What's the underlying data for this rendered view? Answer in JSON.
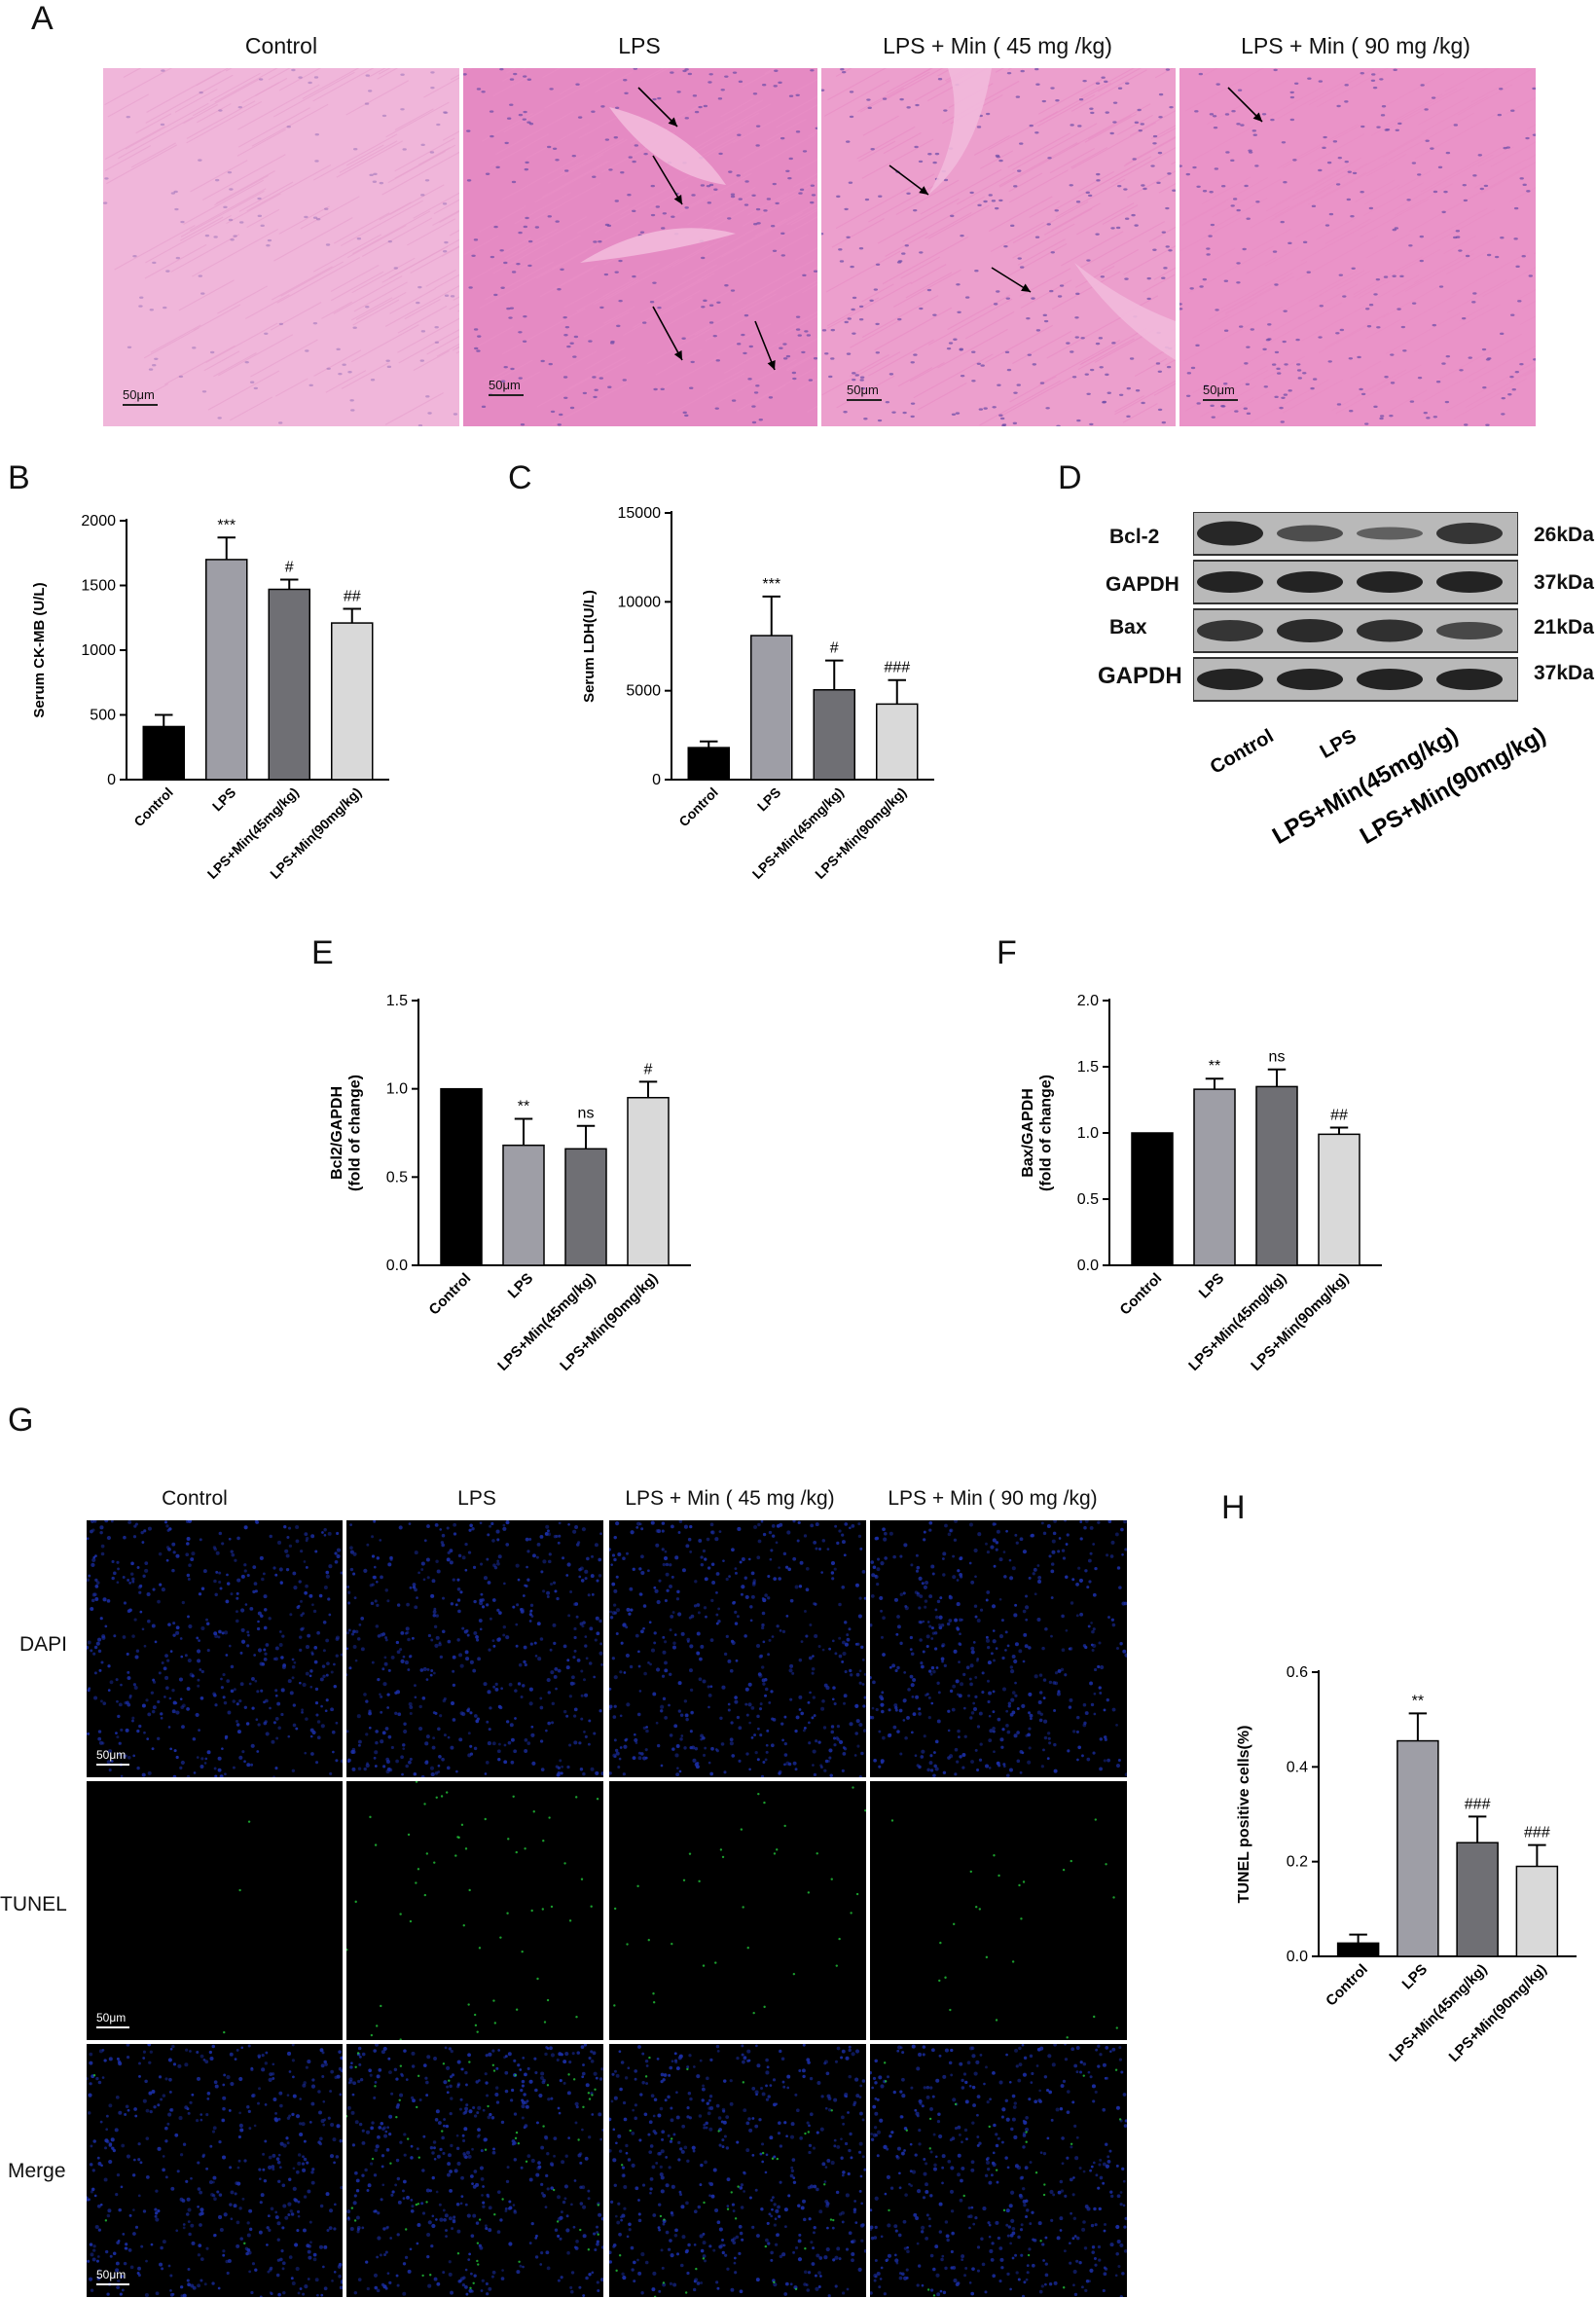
{
  "panel_letters": {
    "A": "A",
    "B": "B",
    "C": "C",
    "D": "D",
    "E": "E",
    "F": "F",
    "G": "G",
    "H": "H"
  },
  "he_panel": {
    "titles": [
      "Control",
      "LPS",
      "LPS + Min ( 45 mg /kg)",
      "LPS + Min ( 90 mg /kg)"
    ],
    "scale_label": "50μm",
    "colors": {
      "tissue": "#e98fc6",
      "tissue_light": "#f2b9dc",
      "nuclei": "#6a4aa6"
    }
  },
  "western_blot": {
    "bands": [
      {
        "label": "Bcl-2",
        "kda": "26kDa"
      },
      {
        "label": "GAPDH",
        "kda": "37kDa"
      },
      {
        "label": "Bax",
        "kda": "21kDa"
      },
      {
        "label": "GAPDH",
        "kda": "37kDa"
      }
    ],
    "lanes": [
      "Control",
      "LPS",
      "LPS+Min(45mg/kg)",
      "LPS+Min(90mg/kg)"
    ]
  },
  "fluorescence_panel": {
    "titles": [
      "Control",
      "LPS",
      "LPS + Min ( 45 mg /kg)",
      "LPS + Min ( 90 mg /kg)"
    ],
    "rows": [
      "DAPI",
      "TUNEL",
      "Merge"
    ],
    "scale_label": "50μm",
    "colors": {
      "dapi": "#1b2fa8",
      "tunel": "#22c63a"
    }
  },
  "chart_data": [
    {
      "id": "B",
      "type": "bar",
      "categories": [
        "Control",
        "LPS",
        "LPS+Min(45mg/kg)",
        "LPS+Min(90mg/kg)"
      ],
      "values": [
        410,
        1700,
        1470,
        1210
      ],
      "errors": [
        90,
        170,
        75,
        110
      ],
      "annotations": [
        "",
        "***",
        "#",
        "##"
      ],
      "ylabel": "Serum CK-MB (U/L)",
      "ylim": [
        0,
        2000
      ],
      "yticks": [
        0,
        500,
        1000,
        1500,
        2000
      ],
      "colors": [
        "#000000",
        "#9e9ea6",
        "#6f6f74",
        "#d9d9d9"
      ]
    },
    {
      "id": "C",
      "type": "bar",
      "categories": [
        "Control",
        "LPS",
        "LPS+Min(45mg/kg)",
        "LPS+Min(90mg/kg)"
      ],
      "values": [
        1800,
        8100,
        5050,
        4250
      ],
      "errors": [
        350,
        2200,
        1650,
        1350
      ],
      "annotations": [
        "",
        "***",
        "#",
        "###"
      ],
      "ylabel": "Serum LDH(U/L)",
      "ylim": [
        0,
        15000
      ],
      "yticks": [
        0,
        5000,
        10000,
        15000
      ],
      "colors": [
        "#000000",
        "#9e9ea6",
        "#6f6f74",
        "#d9d9d9"
      ]
    },
    {
      "id": "E",
      "type": "bar",
      "categories": [
        "Control",
        "LPS",
        "LPS+Min(45mg/kg)",
        "LPS+Min(90mg/kg)"
      ],
      "values": [
        1.0,
        0.68,
        0.66,
        0.95
      ],
      "errors": [
        0,
        0.15,
        0.13,
        0.09
      ],
      "annotations": [
        "",
        "**",
        "ns",
        "#"
      ],
      "ylabel": "Bcl2/GAPDH (fold of change)",
      "ylim": [
        0,
        1.5
      ],
      "yticks": [
        0.0,
        0.5,
        1.0,
        1.5
      ],
      "colors": [
        "#000000",
        "#9e9ea6",
        "#6f6f74",
        "#d9d9d9"
      ]
    },
    {
      "id": "F",
      "type": "bar",
      "categories": [
        "Control",
        "LPS",
        "LPS+Min(45mg/kg)",
        "LPS+Min(90mg/kg)"
      ],
      "values": [
        1.0,
        1.33,
        1.35,
        0.99
      ],
      "errors": [
        0,
        0.08,
        0.13,
        0.05
      ],
      "annotations": [
        "",
        "**",
        "ns",
        "##"
      ],
      "ylabel": "Bax/GAPDH (fold of change)",
      "ylim": [
        0,
        2.0
      ],
      "yticks": [
        0.0,
        0.5,
        1.0,
        1.5,
        2.0
      ],
      "colors": [
        "#000000",
        "#9e9ea6",
        "#6f6f74",
        "#d9d9d9"
      ]
    },
    {
      "id": "H",
      "type": "bar",
      "categories": [
        "Control",
        "LPS",
        "LPS+Min(45mg/kg)",
        "LPS+Min(90mg/kg)"
      ],
      "values": [
        0.028,
        0.455,
        0.24,
        0.19
      ],
      "errors": [
        0.018,
        0.058,
        0.055,
        0.045
      ],
      "annotations": [
        "",
        "**",
        "###",
        "###"
      ],
      "ylabel": "TUNEL positive cells(%)",
      "ylim": [
        0,
        0.6
      ],
      "yticks": [
        0.0,
        0.2,
        0.4,
        0.6
      ],
      "colors": [
        "#000000",
        "#9e9ea6",
        "#6f6f74",
        "#d9d9d9"
      ]
    }
  ]
}
